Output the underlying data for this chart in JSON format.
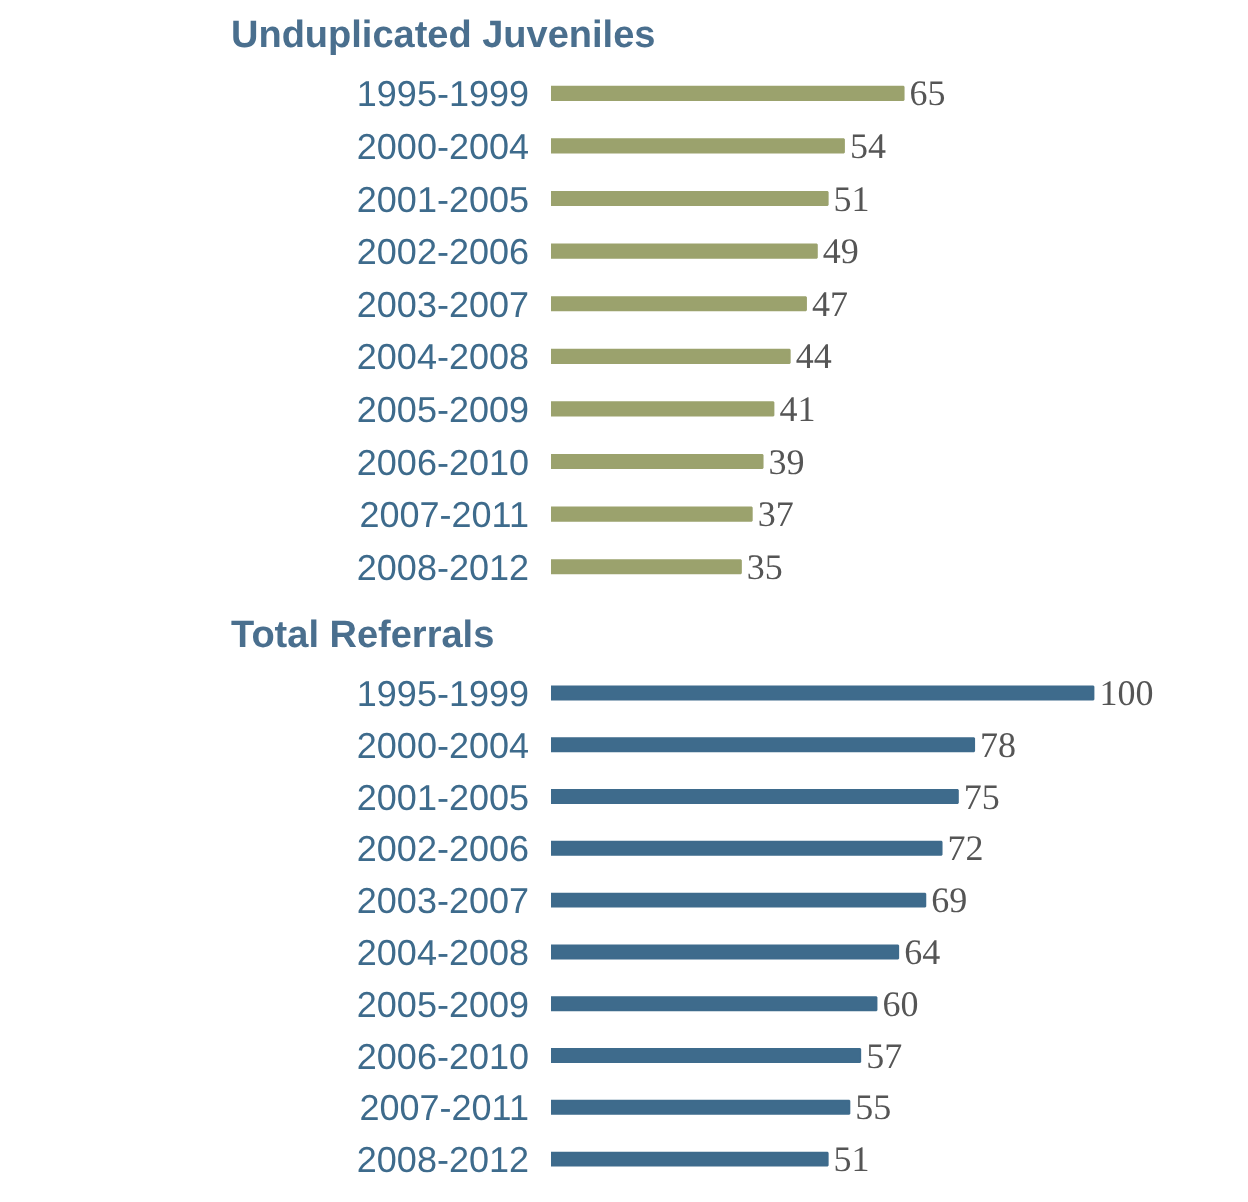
{
  "chart_data": [
    {
      "type": "bar",
      "orientation": "horizontal",
      "title": "Unduplicated Juveniles",
      "categories": [
        "1995-1999",
        "2000-2004",
        "2001-2005",
        "2002-2006",
        "2003-2007",
        "2004-2008",
        "2005-2009",
        "2006-2010",
        "2007-2011",
        "2008-2012"
      ],
      "values": [
        65,
        54,
        51,
        49,
        47,
        44,
        41,
        39,
        37,
        35
      ],
      "color": "#9ba26d",
      "data_labels": true,
      "tick_labels": "y",
      "grid": false
    },
    {
      "type": "bar",
      "orientation": "horizontal",
      "title": "Total Referrals",
      "categories": [
        "1995-1999",
        "2000-2004",
        "2001-2005",
        "2002-2006",
        "2003-2007",
        "2004-2008",
        "2005-2009",
        "2006-2010",
        "2007-2011",
        "2008-2012"
      ],
      "values": [
        100,
        78,
        75,
        72,
        69,
        64,
        60,
        57,
        55,
        51
      ],
      "color": "#3e6b8c",
      "data_labels": true,
      "tick_labels": "y",
      "grid": false
    }
  ]
}
